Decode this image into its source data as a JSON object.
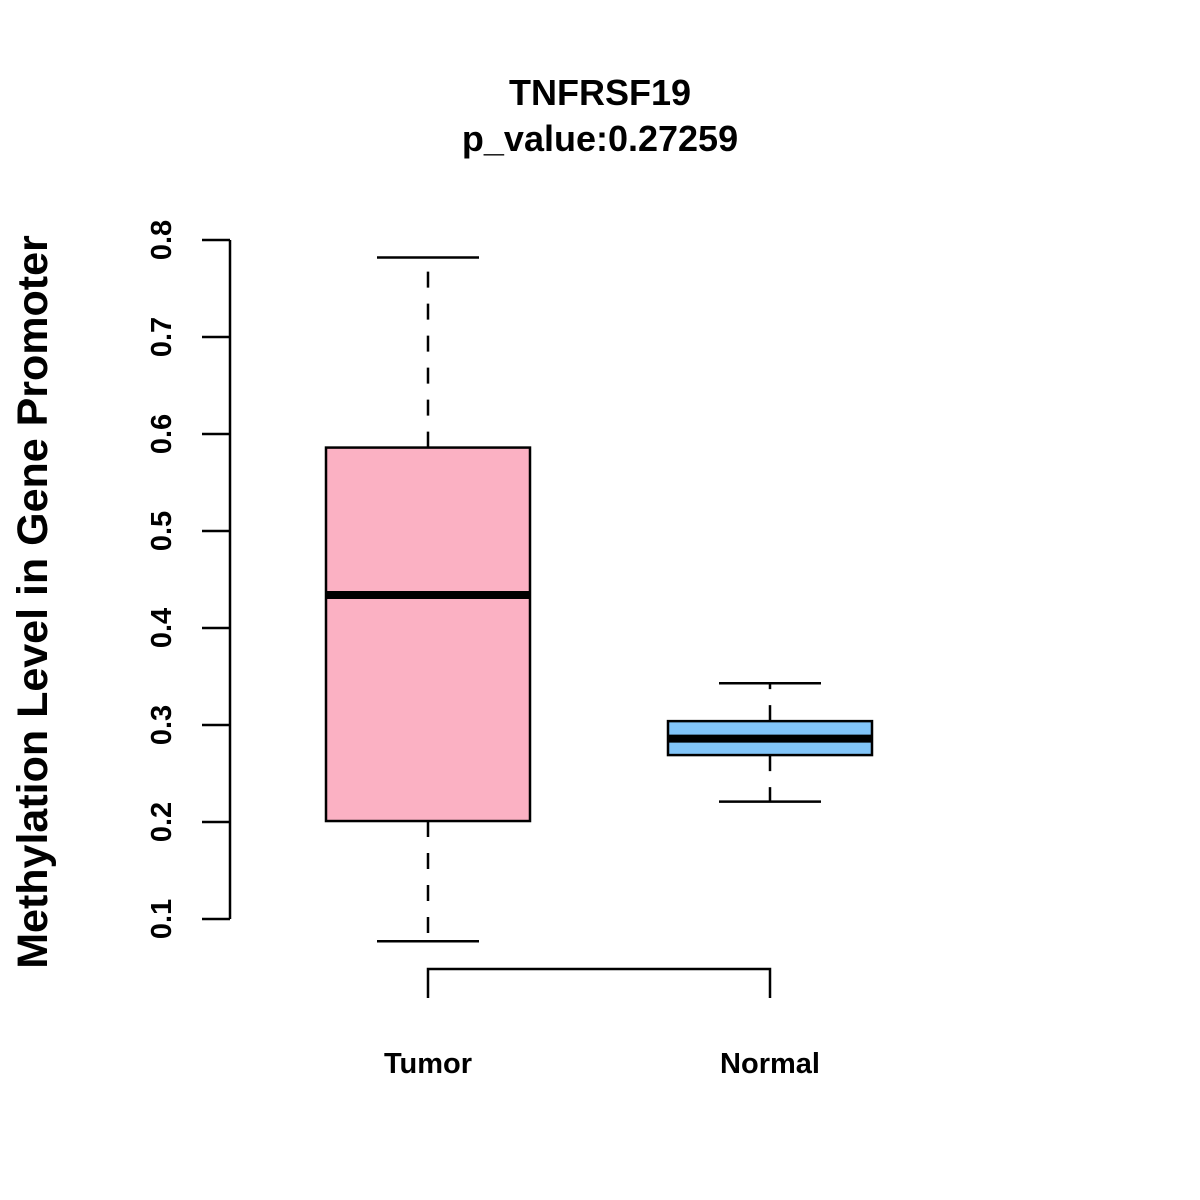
{
  "chart_data": {
    "type": "boxplot",
    "title": "TNFRSF19",
    "subtitle": "p_value:0.27259",
    "xlabel": "",
    "ylabel": "Methylation Level in Gene Promoter",
    "ylim": [
      0.1,
      0.8
    ],
    "yticks": [
      "0.1",
      "0.2",
      "0.3",
      "0.4",
      "0.5",
      "0.6",
      "0.7",
      "0.8"
    ],
    "categories": [
      "Tumor",
      "Normal"
    ],
    "series": [
      {
        "name": "Tumor",
        "color": "#FBB1C3",
        "whisker_low": 0.077,
        "q1": 0.201,
        "median": 0.434,
        "q3": 0.586,
        "whisker_high": 0.782
      },
      {
        "name": "Normal",
        "color": "#82C5F9",
        "whisker_low": 0.221,
        "q1": 0.269,
        "median": 0.286,
        "q3": 0.304,
        "whisker_high": 0.343
      }
    ],
    "comparison_bracket": [
      "Tumor",
      "Normal"
    ],
    "grid": false,
    "legend": "none"
  }
}
